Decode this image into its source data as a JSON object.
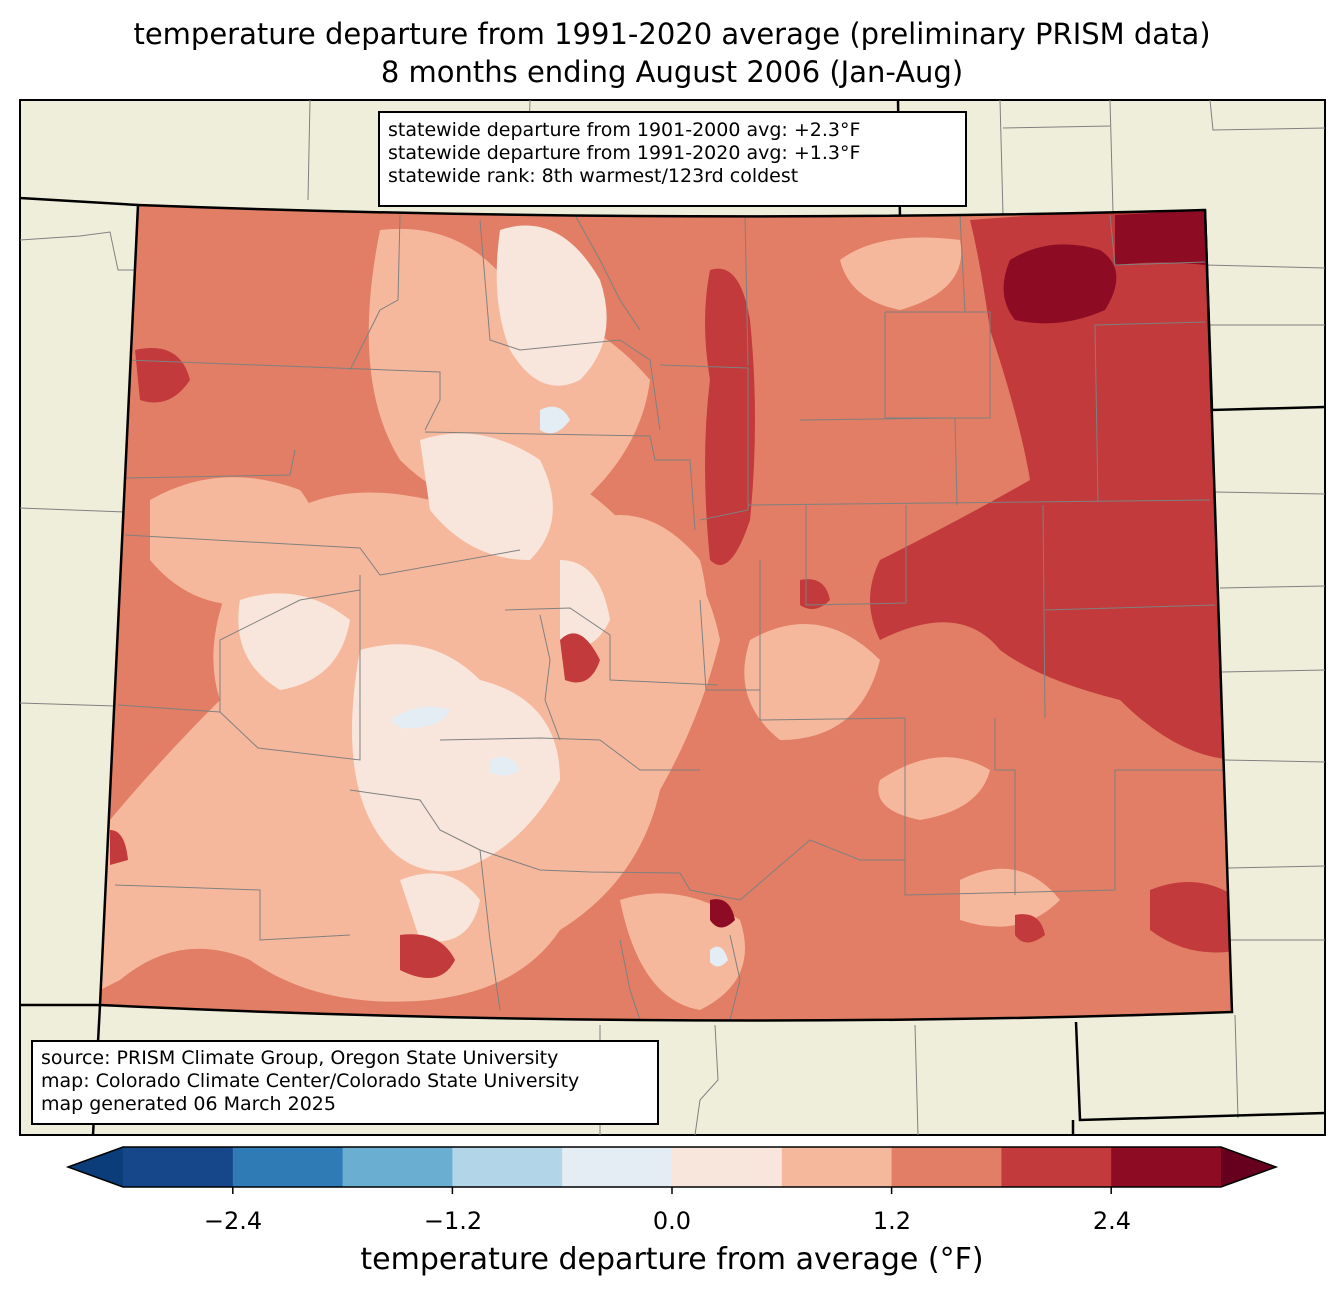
{
  "title": {
    "line1": "temperature departure from 1991-2020 average (preliminary PRISM data)",
    "line2": "8 months ending August 2006 (Jan-Aug)"
  },
  "stats": {
    "line1": "statewide departure from 1901-2000 avg: +2.3°F",
    "line2": "statewide departure from 1991-2020 avg: +1.3°F",
    "line3": "statewide rank: 8th warmest/123rd coldest"
  },
  "source": {
    "line1": "source: PRISM Climate Group, Oregon State University",
    "line2": "map: Colorado Climate Center/Colorado State University",
    "line3": "map generated 06 March 2025"
  },
  "colorbar": {
    "label": "temperature departure from average (°F)",
    "ticks": [
      "−2.4",
      "−1.2",
      "0.0",
      "1.2",
      "2.4"
    ],
    "tick_values": [
      -2.4,
      -1.2,
      0.0,
      1.2,
      2.4
    ],
    "bins": [
      -3.0,
      -2.4,
      -1.8,
      -1.2,
      -0.6,
      0.0,
      0.6,
      1.2,
      1.8,
      2.4,
      3.0
    ],
    "colors": [
      "#0b3d7a",
      "#15478a",
      "#2f7bb6",
      "#6aaed2",
      "#b2d6e7",
      "#e3edf3",
      "#f8e6dc",
      "#f6b89c",
      "#e17e65",
      "#c23a3b",
      "#8d0c24",
      "#67001f"
    ]
  },
  "map_colors": {
    "land": "#efeedb",
    "border": "#000000",
    "county": "#808080"
  }
}
